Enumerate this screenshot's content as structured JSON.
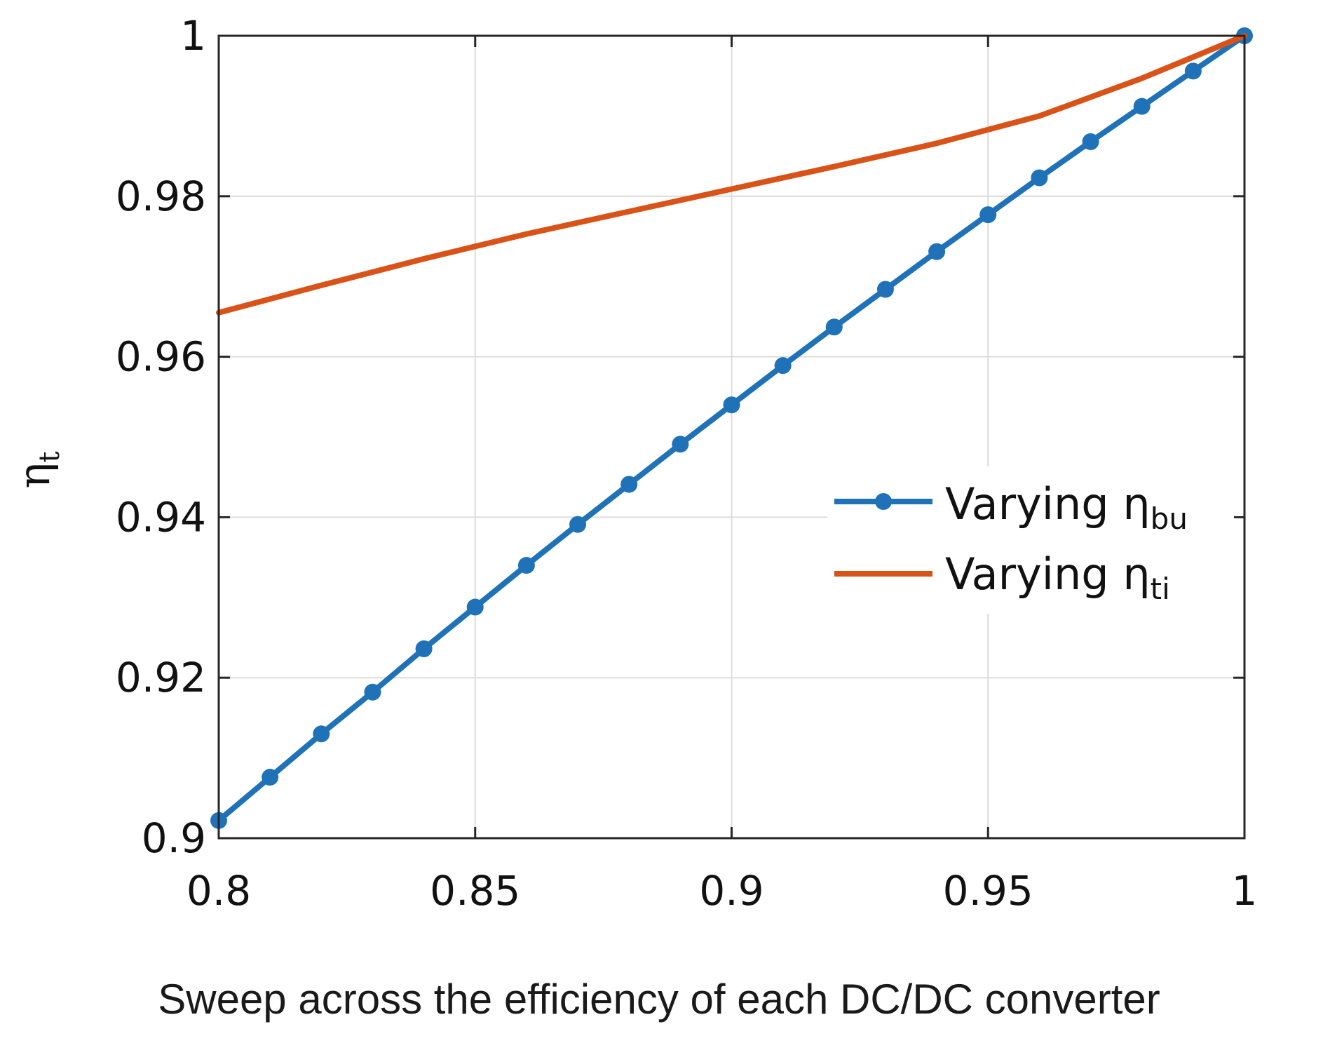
{
  "chart_data": {
    "type": "line",
    "title": "",
    "xlabel": "Sweep across the efficiency of each DC/DC converter",
    "ylabel": {
      "symbol": "η",
      "subscript": "t"
    },
    "xlim": [
      0.8,
      1.0
    ],
    "ylim": [
      0.9,
      1.0
    ],
    "xticks": [
      0.8,
      0.85,
      0.9,
      0.95,
      1.0
    ],
    "xtick_labels": [
      "0.8",
      "0.85",
      "0.9",
      "0.95",
      "1"
    ],
    "yticks": [
      0.9,
      0.92,
      0.94,
      0.96,
      0.98,
      1.0
    ],
    "ytick_labels": [
      "0.9",
      "0.92",
      "0.94",
      "0.96",
      "0.98",
      "1"
    ],
    "grid": true,
    "legend_position": "center-right",
    "series": [
      {
        "name": "Varying η_bu",
        "label_main": "Varying η",
        "label_sub": "bu",
        "color": "#1f72b8",
        "marker": "circle",
        "x": [
          0.8,
          0.81,
          0.82,
          0.83,
          0.84,
          0.85,
          0.86,
          0.87,
          0.88,
          0.89,
          0.9,
          0.91,
          0.92,
          0.93,
          0.94,
          0.95,
          0.96,
          0.97,
          0.98,
          0.99,
          1.0
        ],
        "y": [
          0.9022,
          0.9076,
          0.913,
          0.9182,
          0.9236,
          0.9288,
          0.934,
          0.9391,
          0.9441,
          0.9491,
          0.954,
          0.9589,
          0.9637,
          0.9684,
          0.9731,
          0.9777,
          0.9823,
          0.9868,
          0.9912,
          0.9956,
          1.0
        ]
      },
      {
        "name": "Varying η_ti",
        "label_main": "Varying η",
        "label_sub": "ti",
        "color": "#d95319",
        "marker": "none",
        "x": [
          0.8,
          0.82,
          0.84,
          0.86,
          0.88,
          0.9,
          0.92,
          0.94,
          0.96,
          0.98,
          1.0
        ],
        "y": [
          0.9655,
          0.9689,
          0.9722,
          0.9753,
          0.9781,
          0.9809,
          0.9837,
          0.9866,
          0.99,
          0.9947,
          1.0
        ]
      }
    ]
  }
}
